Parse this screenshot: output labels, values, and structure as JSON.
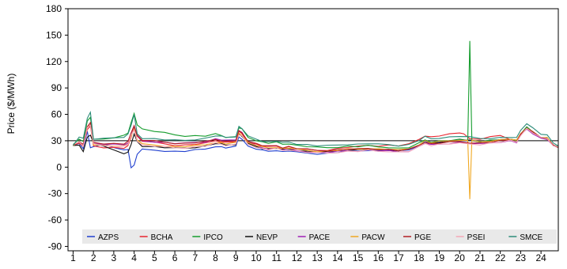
{
  "chart_data": {
    "type": "line",
    "ylabel": "Price ($/MWh)",
    "xlabel": "",
    "ylim": [
      -95,
      180
    ],
    "yticks": [
      180,
      150,
      120,
      90,
      60,
      30,
      0,
      -30,
      -60,
      -90
    ],
    "xlim": [
      0.75,
      24.85
    ],
    "xticks": [
      "1",
      "2",
      "3",
      "4",
      "5",
      "6",
      "7",
      "8",
      "9",
      "10",
      "11",
      "12",
      "13",
      "14",
      "15",
      "16",
      "17",
      "18",
      "19",
      "20",
      "21",
      "22",
      "23",
      "24"
    ],
    "reference_line": 30,
    "legend_position": "bottom",
    "base_profile": [
      [
        1.0,
        25
      ],
      [
        1.3,
        30
      ],
      [
        1.5,
        27
      ],
      [
        1.7,
        48
      ],
      [
        1.85,
        52
      ],
      [
        2.0,
        30
      ],
      [
        2.5,
        28
      ],
      [
        3.0,
        27
      ],
      [
        3.5,
        26
      ],
      [
        3.7,
        28
      ],
      [
        3.85,
        38
      ],
      [
        4.0,
        45
      ],
      [
        4.15,
        33
      ],
      [
        4.4,
        28
      ],
      [
        5.0,
        27
      ],
      [
        5.5,
        26
      ],
      [
        6.0,
        25
      ],
      [
        6.5,
        25
      ],
      [
        7.0,
        26
      ],
      [
        7.5,
        27
      ],
      [
        8.0,
        30
      ],
      [
        8.3,
        29
      ],
      [
        8.5,
        28
      ],
      [
        9.0,
        29
      ],
      [
        9.15,
        40
      ],
      [
        9.3,
        38
      ],
      [
        9.6,
        29
      ],
      [
        10.0,
        26
      ],
      [
        10.3,
        24
      ],
      [
        10.6,
        23
      ],
      [
        11.0,
        24
      ],
      [
        11.3,
        22
      ],
      [
        11.6,
        23
      ],
      [
        12.0,
        21
      ],
      [
        12.5,
        20
      ],
      [
        13.0,
        19
      ],
      [
        13.5,
        19
      ],
      [
        14.0,
        20
      ],
      [
        14.5,
        21
      ],
      [
        15.0,
        21
      ],
      [
        15.5,
        22
      ],
      [
        16.0,
        21
      ],
      [
        16.5,
        21
      ],
      [
        17.0,
        20
      ],
      [
        17.5,
        21
      ],
      [
        18.0,
        26
      ],
      [
        18.3,
        30
      ],
      [
        18.6,
        28
      ],
      [
        19.0,
        29
      ],
      [
        19.5,
        30
      ],
      [
        20.0,
        31
      ],
      [
        20.5,
        30
      ],
      [
        21.0,
        29
      ],
      [
        21.5,
        30
      ],
      [
        22.0,
        31
      ],
      [
        22.5,
        32
      ],
      [
        22.8,
        30
      ],
      [
        23.0,
        38
      ],
      [
        23.3,
        45
      ],
      [
        23.6,
        40
      ],
      [
        24.0,
        34
      ],
      [
        24.3,
        33
      ],
      [
        24.6,
        25
      ],
      [
        24.85,
        23
      ]
    ],
    "series": [
      {
        "name": "AZPS",
        "color": "#1f3fcf",
        "offsets": [
          [
            1.7,
            -8
          ],
          [
            1.85,
            -30
          ],
          [
            2.0,
            -6
          ],
          [
            2.5,
            -2
          ],
          [
            3.7,
            -8
          ],
          [
            3.85,
            -38
          ],
          [
            4.0,
            -43
          ],
          [
            4.15,
            -18
          ],
          [
            4.4,
            -8
          ],
          [
            20.5,
            0
          ],
          [
            24.85,
            0
          ]
        ]
      },
      {
        "name": "BCHA",
        "color": "#e8242e",
        "offsets": [
          [
            1.85,
            -6
          ],
          [
            3.85,
            -4
          ],
          [
            4.0,
            2
          ],
          [
            6.0,
            0
          ],
          [
            13.0,
            0
          ],
          [
            20.2,
            8
          ],
          [
            20.5,
            2
          ],
          [
            22.0,
            5
          ],
          [
            22.5,
            0
          ],
          [
            24.85,
            0
          ]
        ]
      },
      {
        "name": "IPCO",
        "color": "#149c2c",
        "offsets": [
          [
            1.85,
            5
          ],
          [
            2.0,
            1
          ],
          [
            3.85,
            12
          ],
          [
            4.0,
            16
          ],
          [
            9.15,
            5
          ],
          [
            20.4,
            0
          ],
          [
            20.5,
            114
          ],
          [
            20.6,
            0
          ],
          [
            24.85,
            0
          ]
        ]
      },
      {
        "name": "NEVP",
        "color": "#111111",
        "offsets": [
          [
            1.85,
            -16
          ],
          [
            2.0,
            -2
          ],
          [
            3.85,
            -12
          ],
          [
            4.0,
            -8
          ],
          [
            4.15,
            -4
          ],
          [
            20.5,
            0
          ],
          [
            24.85,
            0
          ]
        ]
      },
      {
        "name": "PACE",
        "color": "#a01fb5",
        "offsets": [
          [
            1.85,
            -3
          ],
          [
            3.85,
            0
          ],
          [
            4.0,
            2
          ],
          [
            9.15,
            2
          ],
          [
            10.0,
            -2
          ],
          [
            20.5,
            -3
          ],
          [
            24.85,
            -1
          ]
        ]
      },
      {
        "name": "PACW",
        "color": "#f0a822",
        "offsets": [
          [
            1.85,
            -4
          ],
          [
            3.85,
            -2
          ],
          [
            20.4,
            0
          ],
          [
            20.5,
            -66
          ],
          [
            20.6,
            0
          ],
          [
            24.85,
            0
          ]
        ]
      },
      {
        "name": "PGE",
        "color": "#b31e25",
        "offsets": [
          [
            1.85,
            -2
          ],
          [
            3.85,
            1
          ],
          [
            4.0,
            3
          ],
          [
            9.15,
            1
          ],
          [
            20.5,
            -2
          ],
          [
            24.85,
            0
          ]
        ]
      },
      {
        "name": "PSEI",
        "color": "#f5a7b8",
        "offsets": [
          [
            1.85,
            -4
          ],
          [
            3.85,
            -2
          ],
          [
            4.0,
            -3
          ],
          [
            19.0,
            -3
          ],
          [
            20.0,
            -4
          ],
          [
            24.85,
            0
          ]
        ]
      },
      {
        "name": "SMCE",
        "color": "#2c8c7a",
        "offsets": [
          [
            1.85,
            10
          ],
          [
            2.0,
            2
          ],
          [
            3.85,
            10
          ],
          [
            4.0,
            14
          ],
          [
            4.15,
            5
          ],
          [
            9.15,
            6
          ],
          [
            20.5,
            4
          ],
          [
            22.5,
            2
          ],
          [
            23.3,
            5
          ],
          [
            24.85,
            2
          ]
        ]
      }
    ]
  }
}
